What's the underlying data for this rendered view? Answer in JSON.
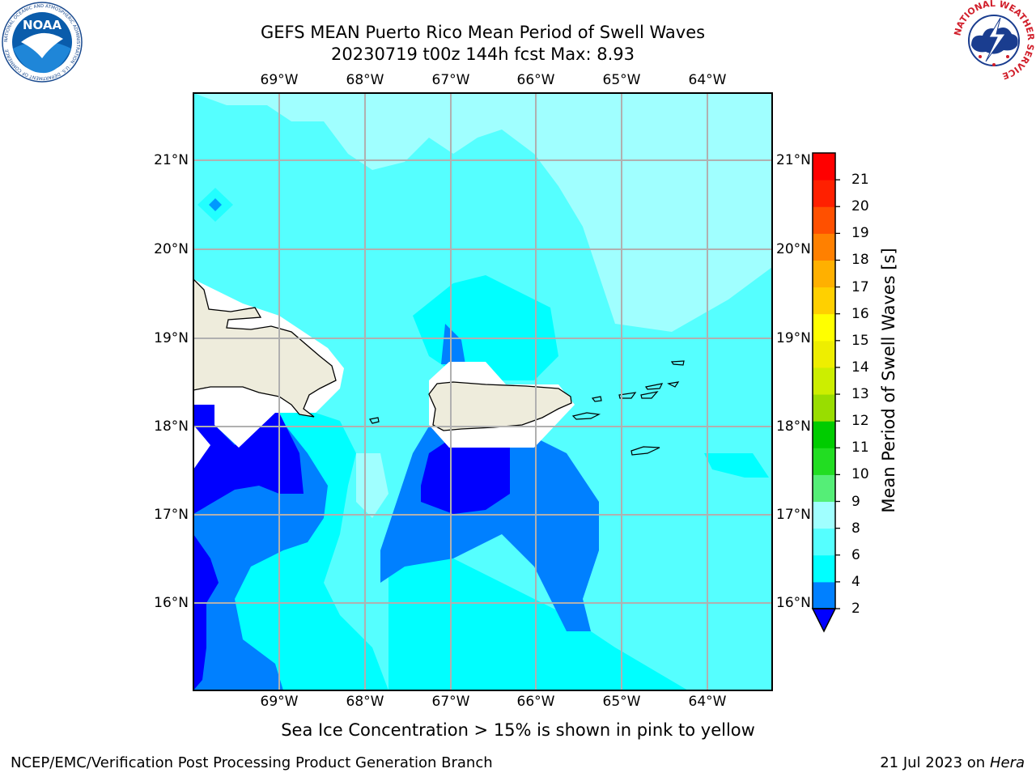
{
  "title": {
    "line1": "GEFS MEAN Puerto Rico Mean Period of Swell Waves",
    "line2": "20230719 t00z 144h fcst   Max: 8.93"
  },
  "axes": {
    "lon_labels": [
      "69°W",
      "68°W",
      "67°W",
      "66°W",
      "65°W",
      "64°W"
    ],
    "lat_labels": [
      "21°N",
      "20°N",
      "19°N",
      "18°N",
      "17°N",
      "16°N"
    ],
    "lon_range": [
      -70,
      -63.25
    ],
    "lat_range": [
      15,
      21.75
    ],
    "grid": true
  },
  "colorbar": {
    "label": "Mean Period of Swell Waves [s]",
    "ticks": [
      "2",
      "4",
      "6",
      "8",
      "9",
      "10",
      "11",
      "12",
      "13",
      "14",
      "15",
      "16",
      "17",
      "18",
      "19",
      "20",
      "21"
    ],
    "colors": [
      "#0080ff",
      "#00ffff",
      "#55ffff",
      "#a0ffff",
      "#55ee77",
      "#22dd22",
      "#00cc00",
      "#99dd00",
      "#ccee00",
      "#eeee00",
      "#ffff00",
      "#ffd000",
      "#ffb000",
      "#ff8000",
      "#ff5000",
      "#ff2000",
      "#ff0000"
    ],
    "under_color": "#0000ff"
  },
  "footnote": "Sea Ice Concentration > 15% is shown in pink to yellow",
  "credit_left": "NCEP/EMC/Verification Post Processing Product Generation Branch",
  "credit_right_prefix": "21 Jul 2023 on ",
  "credit_right_host": "Hera",
  "logos": {
    "left": {
      "text": "NOAA",
      "ring_text": "NATIONAL OCEANIC AND ATMOSPHERIC ADMINISTRATION · U.S. DEPARTMENT OF COMMERCE"
    },
    "right": {
      "ring_text": "NATIONAL WEATHER SERVICE"
    }
  },
  "colors": {
    "land": "#eeecdc",
    "grid": "#b0b0b0",
    "c2_4": "#0080ff",
    "c4_6": "#00ffff",
    "c6_8": "#55ffff",
    "c8_9": "#a0ffff",
    "below2": "#0000ff"
  }
}
